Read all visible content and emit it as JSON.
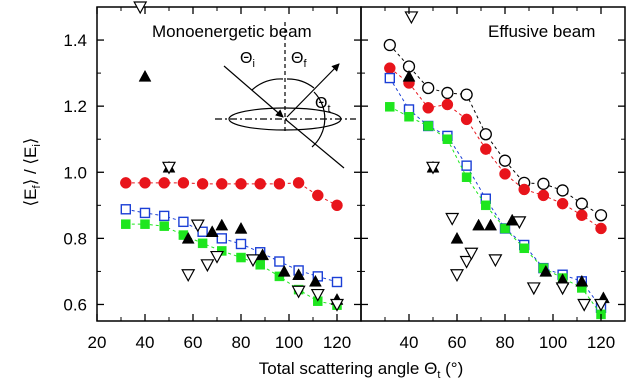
{
  "chart_data": [
    {
      "type": "scatter",
      "title": "Monoenergetic beam",
      "ylabel_parts": {
        "Ef": "E",
        "Ef_sub": "f",
        "Ei": "E",
        "Ei_sub": "i"
      },
      "xlim": [
        20,
        130
      ],
      "ylim": [
        0.55,
        1.5
      ],
      "xticks": [
        20,
        40,
        60,
        80,
        100,
        120
      ],
      "yticks": [
        0.6,
        0.8,
        1.0,
        1.2,
        1.4
      ],
      "grid": false,
      "inset": {
        "theta_i": "Θ",
        "sub_i": "i",
        "theta_f": "Θ",
        "sub_f": "f",
        "theta_t": "Θ",
        "sub_t": "t"
      },
      "series": [
        {
          "marker": "circle-filled",
          "color": "#e8141b",
          "connected": true,
          "x": [
            32,
            40,
            48,
            56,
            64,
            72,
            80,
            88,
            96,
            104,
            112,
            120
          ],
          "y": [
            0.968,
            0.968,
            0.968,
            0.968,
            0.965,
            0.965,
            0.965,
            0.965,
            0.965,
            0.968,
            0.93,
            0.9
          ]
        },
        {
          "marker": "square-open",
          "color": "#1b3fd6",
          "connected": true,
          "x": [
            32,
            40,
            48,
            56,
            64,
            72,
            80,
            88,
            96,
            104,
            112,
            120
          ],
          "y": [
            0.888,
            0.877,
            0.868,
            0.85,
            0.82,
            0.8,
            0.783,
            0.758,
            0.73,
            0.703,
            0.685,
            0.668
          ]
        },
        {
          "marker": "square-filled",
          "color": "#1ee61e",
          "connected": true,
          "x": [
            32,
            40,
            48,
            56,
            64,
            72,
            80,
            88,
            96,
            104,
            112,
            120
          ],
          "y": [
            0.843,
            0.843,
            0.837,
            0.81,
            0.785,
            0.762,
            0.742,
            0.72,
            0.685,
            0.645,
            0.61,
            0.598
          ]
        },
        {
          "marker": "triangle-filled",
          "color": "#000000",
          "connected": false,
          "x": [
            40,
            50,
            58,
            68,
            72,
            80,
            89,
            98,
            104,
            111,
            120
          ],
          "y": [
            1.29,
            1.015,
            0.8,
            0.82,
            0.84,
            0.83,
            0.75,
            0.7,
            0.69,
            0.67,
            0.615
          ]
        },
        {
          "marker": "triangle-open-down",
          "color": "#000000",
          "connected": false,
          "x": [
            38,
            50,
            58,
            62,
            66,
            70,
            85,
            104,
            112,
            120
          ],
          "y": [
            1.5,
            1.015,
            0.69,
            0.84,
            0.72,
            0.745,
            0.735,
            0.64,
            0.63,
            0.6
          ]
        }
      ]
    },
    {
      "type": "scatter",
      "title": "Effusive beam",
      "xlim": [
        20,
        130
      ],
      "ylim": [
        0.55,
        1.5
      ],
      "xticks": [
        40,
        60,
        80,
        100,
        120
      ],
      "grid": false,
      "xlabel_parts": {
        "main": "Total scattering angle Θ",
        "sub": "t",
        "unit": " (°)"
      },
      "series": [
        {
          "marker": "circle-open",
          "color": "#000000",
          "connected": true,
          "x": [
            32,
            40,
            48,
            56,
            64,
            72,
            80,
            88,
            96,
            104,
            112,
            120
          ],
          "y": [
            1.385,
            1.32,
            1.255,
            1.24,
            1.235,
            1.115,
            1.035,
            0.968,
            0.965,
            0.945,
            0.905,
            0.87
          ]
        },
        {
          "marker": "circle-filled",
          "color": "#e8141b",
          "connected": true,
          "x": [
            32,
            40,
            48,
            56,
            64,
            72,
            80,
            88,
            96,
            104,
            112,
            120
          ],
          "y": [
            1.315,
            1.27,
            1.195,
            1.205,
            1.16,
            1.07,
            0.995,
            0.948,
            0.93,
            0.905,
            0.87,
            0.83
          ]
        },
        {
          "marker": "square-open",
          "color": "#1b3fd6",
          "connected": true,
          "x": [
            32,
            40,
            48,
            56,
            64,
            72,
            80,
            88,
            96,
            104,
            112,
            120
          ],
          "y": [
            1.285,
            1.19,
            1.14,
            1.11,
            1.02,
            0.92,
            0.83,
            0.78,
            0.71,
            0.69,
            0.67,
            0.59
          ]
        },
        {
          "marker": "square-filled",
          "color": "#1ee61e",
          "connected": true,
          "x": [
            32,
            40,
            48,
            56,
            64,
            72,
            80,
            88,
            96,
            104,
            112,
            120
          ],
          "y": [
            1.198,
            1.168,
            1.14,
            1.1,
            0.985,
            0.9,
            0.83,
            0.77,
            0.71,
            0.68,
            0.65,
            0.57
          ]
        },
        {
          "marker": "triangle-filled",
          "color": "#000000",
          "connected": false,
          "x": [
            40,
            50,
            60,
            69,
            74,
            83,
            97,
            104,
            112,
            121
          ],
          "y": [
            1.29,
            1.015,
            0.8,
            0.84,
            0.84,
            0.855,
            0.7,
            0.675,
            0.67,
            0.62
          ]
        },
        {
          "marker": "triangle-open-down",
          "color": "#000000",
          "connected": false,
          "x": [
            41,
            50,
            58,
            60,
            64,
            66,
            76,
            86,
            92,
            104,
            113,
            120
          ],
          "y": [
            1.47,
            1.015,
            0.86,
            0.69,
            0.73,
            0.755,
            0.735,
            0.85,
            0.65,
            0.65,
            0.6,
            0.6
          ]
        }
      ]
    }
  ]
}
